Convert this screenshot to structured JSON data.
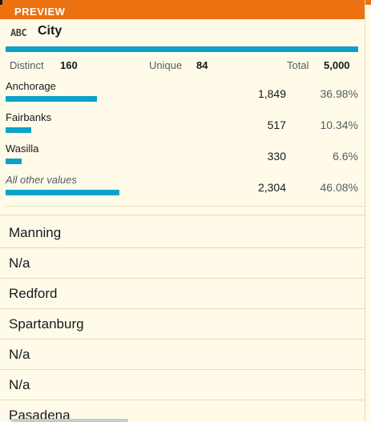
{
  "header": {
    "preview_label": "PREVIEW"
  },
  "column": {
    "type_icon": "ABC",
    "name": "City"
  },
  "stats": {
    "distinct_label": "Distinct",
    "distinct_value": "160",
    "unique_label": "Unique",
    "unique_value": "84",
    "total_label": "Total",
    "total_value": "5,000"
  },
  "value_distribution": [
    {
      "name": "Anchorage",
      "count": "1,849",
      "percent": "36.98%",
      "fraction": 0.3698
    },
    {
      "name": "Fairbanks",
      "count": "517",
      "percent": "10.34%",
      "fraction": 0.1034
    },
    {
      "name": "Wasilla",
      "count": "330",
      "percent": "6.6%",
      "fraction": 0.066
    },
    {
      "name": "All other values",
      "count": "2,304",
      "percent": "46.08%",
      "fraction": 0.4608
    }
  ],
  "rows": [
    "Manning",
    "N/a",
    "Redford",
    "Spartanburg",
    "N/a",
    "N/a",
    "Pasadena"
  ],
  "colors": {
    "accent": "#ec7211",
    "bar": "#0aa2c8",
    "background": "#fffbe8"
  }
}
